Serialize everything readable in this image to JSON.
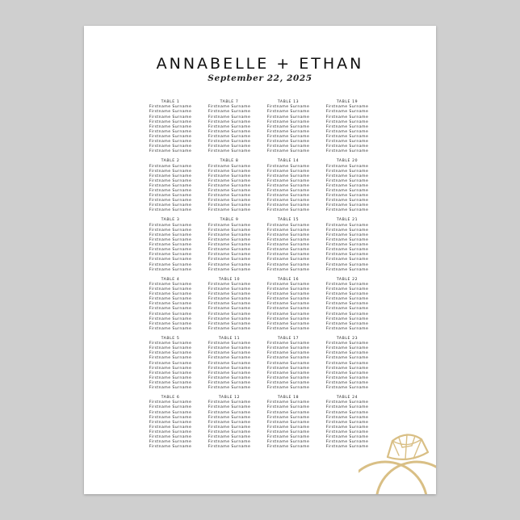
{
  "header": {
    "title": "ANNABELLE + ETHAN",
    "date": "September 22, 2025"
  },
  "colors": {
    "background": "#cfcfcf",
    "paper": "#ffffff",
    "text": "#222222",
    "ring_gold": "#d9bf85"
  },
  "decoration": {
    "icon": "diamond-ring-icon"
  },
  "tables": [
    {
      "label": "TABLE 1",
      "names": [
        "Firstname Surname",
        "Firstname Surname",
        "Firstname Surname",
        "Firstname Surname",
        "Firstname Surname",
        "Firstname Surname",
        "Firstname Surname",
        "Firstname Surname",
        "Firstname Surname",
        "Firstname Surname"
      ]
    },
    {
      "label": "TABLE 2",
      "names": [
        "Firstname Surname",
        "Firstname Surname",
        "Firstname Surname",
        "Firstname Surname",
        "Firstname Surname",
        "Firstname Surname",
        "Firstname Surname",
        "Firstname Surname",
        "Firstname Surname",
        "Firstname Surname"
      ]
    },
    {
      "label": "TABLE 3",
      "names": [
        "Firstname Surname",
        "Firstname Surname",
        "Firstname Surname",
        "Firstname Surname",
        "Firstname Surname",
        "Firstname Surname",
        "Firstname Surname",
        "Firstname Surname",
        "Firstname Surname",
        "Firstname Surname"
      ]
    },
    {
      "label": "TABLE 4",
      "names": [
        "Firstname Surname",
        "Firstname Surname",
        "Firstname Surname",
        "Firstname Surname",
        "Firstname Surname",
        "Firstname Surname",
        "Firstname Surname",
        "Firstname Surname",
        "Firstname Surname",
        "Firstname Surname"
      ]
    },
    {
      "label": "TABLE 5",
      "names": [
        "Firstname Surname",
        "Firstname Surname",
        "Firstname Surname",
        "Firstname Surname",
        "Firstname Surname",
        "Firstname Surname",
        "Firstname Surname",
        "Firstname Surname",
        "Firstname Surname",
        "Firstname Surname"
      ]
    },
    {
      "label": "TABLE 6",
      "names": [
        "Firstname Surname",
        "Firstname Surname",
        "Firstname Surname",
        "Firstname Surname",
        "Firstname Surname",
        "Firstname Surname",
        "Firstname Surname",
        "Firstname Surname",
        "Firstname Surname",
        "Firstname Surname"
      ]
    },
    {
      "label": "TABLE 7",
      "names": [
        "Firstname Surname",
        "Firstname Surname",
        "Firstname Surname",
        "Firstname Surname",
        "Firstname Surname",
        "Firstname Surname",
        "Firstname Surname",
        "Firstname Surname",
        "Firstname Surname",
        "Firstname Surname"
      ]
    },
    {
      "label": "TABLE 8",
      "names": [
        "Firstname Surname",
        "Firstname Surname",
        "Firstname Surname",
        "Firstname Surname",
        "Firstname Surname",
        "Firstname Surname",
        "Firstname Surname",
        "Firstname Surname",
        "Firstname Surname",
        "Firstname Surname"
      ]
    },
    {
      "label": "TABLE 9",
      "names": [
        "Firstname Surname",
        "Firstname Surname",
        "Firstname Surname",
        "Firstname Surname",
        "Firstname Surname",
        "Firstname Surname",
        "Firstname Surname",
        "Firstname Surname",
        "Firstname Surname",
        "Firstname Surname"
      ]
    },
    {
      "label": "TABLE 10",
      "names": [
        "Firstname Surname",
        "Firstname Surname",
        "Firstname Surname",
        "Firstname Surname",
        "Firstname Surname",
        "Firstname Surname",
        "Firstname Surname",
        "Firstname Surname",
        "Firstname Surname",
        "Firstname Surname"
      ]
    },
    {
      "label": "TABLE 11",
      "names": [
        "Firstname Surname",
        "Firstname Surname",
        "Firstname Surname",
        "Firstname Surname",
        "Firstname Surname",
        "Firstname Surname",
        "Firstname Surname",
        "Firstname Surname",
        "Firstname Surname",
        "Firstname Surname"
      ]
    },
    {
      "label": "TABLE 12",
      "names": [
        "Firstname Surname",
        "Firstname Surname",
        "Firstname Surname",
        "Firstname Surname",
        "Firstname Surname",
        "Firstname Surname",
        "Firstname Surname",
        "Firstname Surname",
        "Firstname Surname",
        "Firstname Surname"
      ]
    },
    {
      "label": "TABLE 13",
      "names": [
        "Firstname Surname",
        "Firstname Surname",
        "Firstname Surname",
        "Firstname Surname",
        "Firstname Surname",
        "Firstname Surname",
        "Firstname Surname",
        "Firstname Surname",
        "Firstname Surname",
        "Firstname Surname"
      ]
    },
    {
      "label": "TABLE 14",
      "names": [
        "Firstname Surname",
        "Firstname Surname",
        "Firstname Surname",
        "Firstname Surname",
        "Firstname Surname",
        "Firstname Surname",
        "Firstname Surname",
        "Firstname Surname",
        "Firstname Surname",
        "Firstname Surname"
      ]
    },
    {
      "label": "TABLE 15",
      "names": [
        "Firstname Surname",
        "Firstname Surname",
        "Firstname Surname",
        "Firstname Surname",
        "Firstname Surname",
        "Firstname Surname",
        "Firstname Surname",
        "Firstname Surname",
        "Firstname Surname",
        "Firstname Surname"
      ]
    },
    {
      "label": "TABLE 16",
      "names": [
        "Firstname Surname",
        "Firstname Surname",
        "Firstname Surname",
        "Firstname Surname",
        "Firstname Surname",
        "Firstname Surname",
        "Firstname Surname",
        "Firstname Surname",
        "Firstname Surname",
        "Firstname Surname"
      ]
    },
    {
      "label": "TABLE 17",
      "names": [
        "Firstname Surname",
        "Firstname Surname",
        "Firstname Surname",
        "Firstname Surname",
        "Firstname Surname",
        "Firstname Surname",
        "Firstname Surname",
        "Firstname Surname",
        "Firstname Surname",
        "Firstname Surname"
      ]
    },
    {
      "label": "TABLE 18",
      "names": [
        "Firstname Surname",
        "Firstname Surname",
        "Firstname Surname",
        "Firstname Surname",
        "Firstname Surname",
        "Firstname Surname",
        "Firstname Surname",
        "Firstname Surname",
        "Firstname Surname",
        "Firstname Surname"
      ]
    },
    {
      "label": "TABLE 19",
      "names": [
        "Firstname Surname",
        "Firstname Surname",
        "Firstname Surname",
        "Firstname Surname",
        "Firstname Surname",
        "Firstname Surname",
        "Firstname Surname",
        "Firstname Surname",
        "Firstname Surname",
        "Firstname Surname"
      ]
    },
    {
      "label": "TABLE 20",
      "names": [
        "Firstname Surname",
        "Firstname Surname",
        "Firstname Surname",
        "Firstname Surname",
        "Firstname Surname",
        "Firstname Surname",
        "Firstname Surname",
        "Firstname Surname",
        "Firstname Surname",
        "Firstname Surname"
      ]
    },
    {
      "label": "TABLE 21",
      "names": [
        "Firstname Surname",
        "Firstname Surname",
        "Firstname Surname",
        "Firstname Surname",
        "Firstname Surname",
        "Firstname Surname",
        "Firstname Surname",
        "Firstname Surname",
        "Firstname Surname",
        "Firstname Surname"
      ]
    },
    {
      "label": "TABLE 22",
      "names": [
        "Firstname Surname",
        "Firstname Surname",
        "Firstname Surname",
        "Firstname Surname",
        "Firstname Surname",
        "Firstname Surname",
        "Firstname Surname",
        "Firstname Surname",
        "Firstname Surname",
        "Firstname Surname"
      ]
    },
    {
      "label": "TABLE 23",
      "names": [
        "Firstname Surname",
        "Firstname Surname",
        "Firstname Surname",
        "Firstname Surname",
        "Firstname Surname",
        "Firstname Surname",
        "Firstname Surname",
        "Firstname Surname",
        "Firstname Surname",
        "Firstname Surname"
      ]
    },
    {
      "label": "TABLE 24",
      "names": [
        "Firstname Surname",
        "Firstname Surname",
        "Firstname Surname",
        "Firstname Surname",
        "Firstname Surname",
        "Firstname Surname",
        "Firstname Surname",
        "Firstname Surname",
        "Firstname Surname",
        "Firstname Surname"
      ]
    }
  ]
}
